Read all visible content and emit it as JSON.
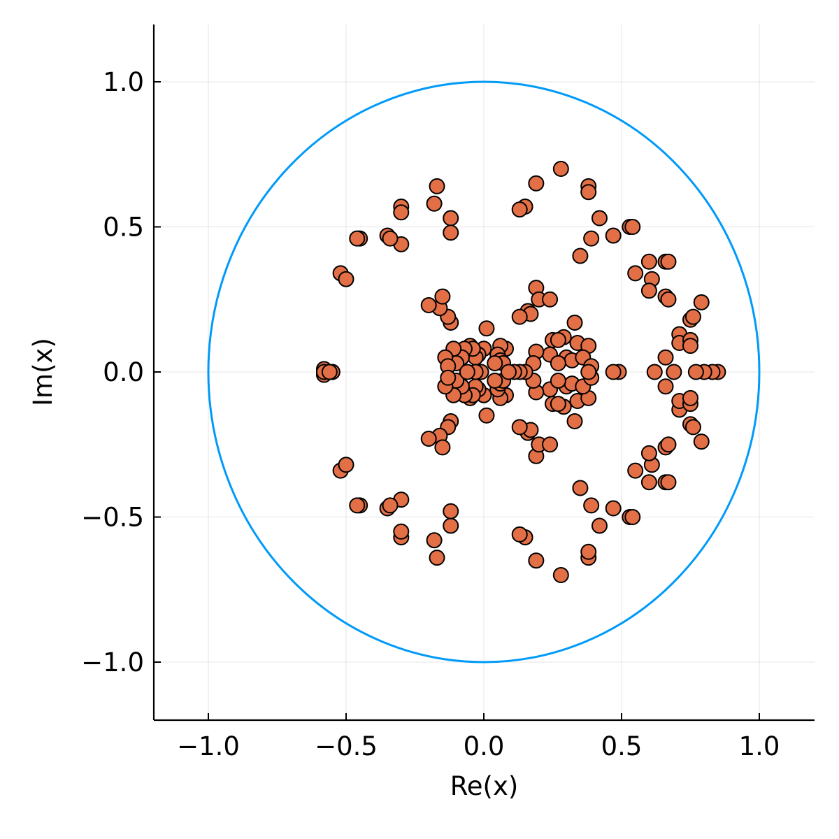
{
  "chart_data": {
    "type": "scatter",
    "xlabel": "Re(x)",
    "ylabel": "Im(x)",
    "xlim": [
      -1.2,
      1.2
    ],
    "ylim": [
      -1.2,
      1.2
    ],
    "x_ticks": [
      -1.0,
      -0.5,
      0.0,
      0.5,
      1.0
    ],
    "y_ticks": [
      -1.0,
      -0.5,
      0.0,
      0.5,
      1.0
    ],
    "x_tick_labels": [
      "−1.0",
      "−0.5",
      "0.0",
      "0.5",
      "1.0"
    ],
    "y_tick_labels": [
      "−1.0",
      "−0.5",
      "0.0",
      "0.5",
      "1.0"
    ],
    "grid": true,
    "legend": "none",
    "series": [
      {
        "type": "line",
        "shape": "unit circle",
        "center": [
          0,
          0
        ],
        "radius": 1,
        "color": "#009af9"
      },
      {
        "type": "scatter",
        "color": "#e26f46",
        "edge_color": "#000000",
        "symmetric_about_real_axis": true,
        "points_upper": [
          [
            0.28,
            0.7
          ],
          [
            0.38,
            0.64
          ],
          [
            0.38,
            0.62
          ],
          [
            0.19,
            0.65
          ],
          [
            0.15,
            0.57
          ],
          [
            0.13,
            0.56
          ],
          [
            0.42,
            0.53
          ],
          [
            0.47,
            0.47
          ],
          [
            0.39,
            0.46
          ],
          [
            0.35,
            0.4
          ],
          [
            0.53,
            0.5
          ],
          [
            0.54,
            0.5
          ],
          [
            0.6,
            0.38
          ],
          [
            0.55,
            0.34
          ],
          [
            0.61,
            0.32
          ],
          [
            0.6,
            0.28
          ],
          [
            0.66,
            0.38
          ],
          [
            0.67,
            0.38
          ],
          [
            0.66,
            0.26
          ],
          [
            0.67,
            0.25
          ],
          [
            0.79,
            0.24
          ],
          [
            0.75,
            0.18
          ],
          [
            0.76,
            0.19
          ],
          [
            0.71,
            0.13
          ],
          [
            0.71,
            0.1
          ],
          [
            0.75,
            0.11
          ],
          [
            0.75,
            0.09
          ],
          [
            0.66,
            0.05
          ],
          [
            0.19,
            0.29
          ],
          [
            0.2,
            0.25
          ],
          [
            0.24,
            0.25
          ],
          [
            0.16,
            0.21
          ],
          [
            0.17,
            0.2
          ],
          [
            0.13,
            0.19
          ],
          [
            0.29,
            0.12
          ],
          [
            0.33,
            0.17
          ],
          [
            0.25,
            0.11
          ],
          [
            0.27,
            0.11
          ],
          [
            0.34,
            0.1
          ],
          [
            0.38,
            0.09
          ],
          [
            0.3,
            0.05
          ],
          [
            0.32,
            0.04
          ],
          [
            0.36,
            0.05
          ],
          [
            0.39,
            0.02
          ],
          [
            0.24,
            0.06
          ],
          [
            0.27,
            0.03
          ],
          [
            0.19,
            0.07
          ],
          [
            0.18,
            0.03
          ],
          [
            0.08,
            0.08
          ],
          [
            0.06,
            0.09
          ],
          [
            0.05,
            0.06
          ],
          [
            0.06,
            0.04
          ],
          [
            0.07,
            0.03
          ],
          [
            0.04,
            0.03
          ],
          [
            0.01,
            0.15
          ],
          [
            0.0,
            0.08
          ],
          [
            -0.02,
            0.06
          ],
          [
            -0.03,
            0.05
          ],
          [
            -0.05,
            0.09
          ],
          [
            -0.04,
            0.08
          ],
          [
            -0.07,
            0.08
          ],
          [
            -0.08,
            0.05
          ],
          [
            -0.11,
            0.08
          ],
          [
            -0.1,
            0.03
          ],
          [
            -0.14,
            0.05
          ],
          [
            -0.13,
            0.02
          ],
          [
            -0.12,
            0.17
          ],
          [
            -0.13,
            0.19
          ],
          [
            -0.16,
            0.22
          ],
          [
            -0.15,
            0.26
          ],
          [
            -0.2,
            0.23
          ],
          [
            -0.17,
            0.64
          ],
          [
            -0.12,
            0.53
          ],
          [
            -0.12,
            0.48
          ],
          [
            -0.18,
            0.58
          ],
          [
            -0.3,
            0.57
          ],
          [
            -0.3,
            0.55
          ],
          [
            -0.3,
            0.44
          ],
          [
            -0.35,
            0.47
          ],
          [
            -0.34,
            0.46
          ],
          [
            -0.45,
            0.46
          ],
          [
            -0.46,
            0.46
          ],
          [
            -0.52,
            0.34
          ],
          [
            -0.5,
            0.32
          ],
          [
            -0.58,
            0.01
          ],
          [
            -0.55,
            0.0
          ]
        ],
        "points_real": [
          [
            0.85,
            0.0
          ],
          [
            0.83,
            0.0
          ],
          [
            0.8,
            0.0
          ],
          [
            0.77,
            0.0
          ],
          [
            0.69,
            0.0
          ],
          [
            0.62,
            0.0
          ],
          [
            0.49,
            0.0
          ],
          [
            0.47,
            0.0
          ],
          [
            0.38,
            0.0
          ],
          [
            0.15,
            0.0
          ],
          [
            0.13,
            0.0
          ],
          [
            0.11,
            0.0
          ],
          [
            0.09,
            0.0
          ],
          [
            -0.01,
            0.0
          ],
          [
            -0.03,
            0.0
          ],
          [
            -0.06,
            0.0
          ],
          [
            -0.58,
            0.0
          ],
          [
            -0.56,
            0.0
          ]
        ]
      }
    ]
  }
}
